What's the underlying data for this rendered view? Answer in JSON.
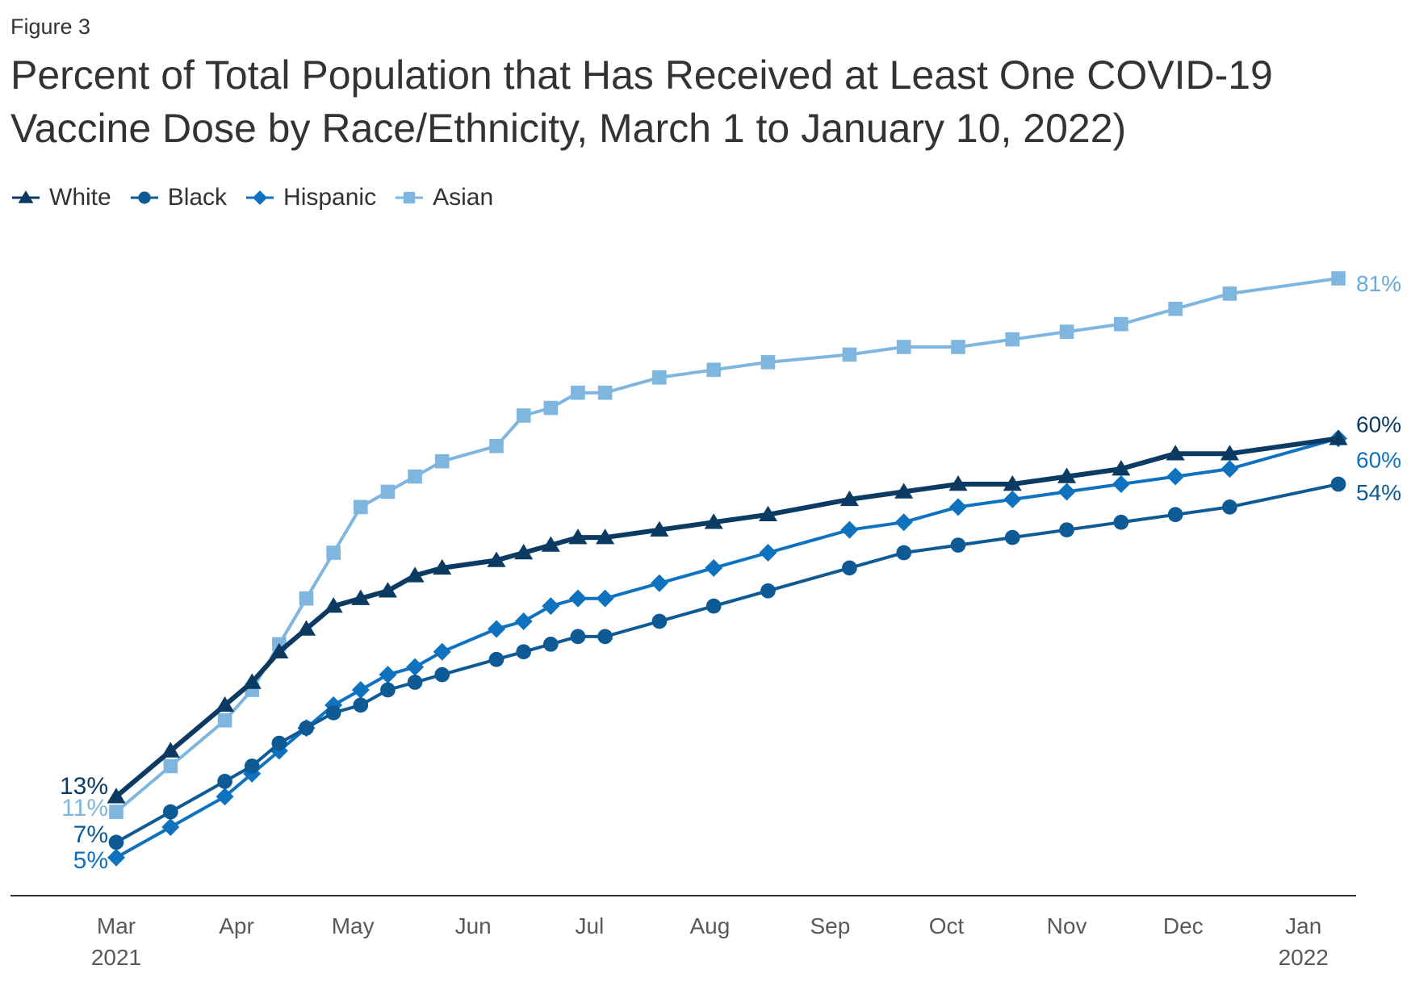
{
  "figure_label": "Figure 3",
  "chart_data": {
    "type": "line",
    "title": "Percent of Total Population that Has Received at Least One COVID-19 Vaccine Dose by Race/Ethnicity, March 1 to January 10, 2022)",
    "ylim": [
      0,
      90
    ],
    "grid": false,
    "legend_position": "top-left",
    "x_ticks": [
      {
        "date": "2021-03-01",
        "label": "Mar",
        "sublabel": "2021"
      },
      {
        "date": "2021-04-01",
        "label": "Apr",
        "sublabel": ""
      },
      {
        "date": "2021-05-01",
        "label": "May",
        "sublabel": ""
      },
      {
        "date": "2021-06-01",
        "label": "Jun",
        "sublabel": ""
      },
      {
        "date": "2021-07-01",
        "label": "Jul",
        "sublabel": ""
      },
      {
        "date": "2021-08-01",
        "label": "Aug",
        "sublabel": ""
      },
      {
        "date": "2021-09-01",
        "label": "Sep",
        "sublabel": ""
      },
      {
        "date": "2021-10-01",
        "label": "Oct",
        "sublabel": ""
      },
      {
        "date": "2021-11-01",
        "label": "Nov",
        "sublabel": ""
      },
      {
        "date": "2021-12-01",
        "label": "Dec",
        "sublabel": ""
      },
      {
        "date": "2022-01-01",
        "label": "Jan",
        "sublabel": "2022"
      }
    ],
    "x": [
      "2021-03-01",
      "2021-03-15",
      "2021-03-29",
      "2021-04-05",
      "2021-04-12",
      "2021-04-19",
      "2021-04-26",
      "2021-05-03",
      "2021-05-10",
      "2021-05-17",
      "2021-05-24",
      "2021-06-07",
      "2021-06-14",
      "2021-06-21",
      "2021-06-28",
      "2021-07-05",
      "2021-07-19",
      "2021-08-02",
      "2021-08-16",
      "2021-09-06",
      "2021-09-20",
      "2021-10-04",
      "2021-10-18",
      "2021-11-01",
      "2021-11-15",
      "2021-11-29",
      "2021-12-13",
      "2022-01-10"
    ],
    "series": [
      {
        "name": "White",
        "color": "#0b3a63",
        "marker": "triangle",
        "end_label": "60%",
        "start_label": "13%",
        "values": [
          13,
          19,
          25,
          28,
          32,
          35,
          38,
          39,
          40,
          42,
          43,
          44,
          45,
          46,
          47,
          47,
          48,
          49,
          50,
          52,
          53,
          54,
          54,
          55,
          56,
          58,
          58,
          60
        ]
      },
      {
        "name": "Black",
        "color": "#0e5a95",
        "marker": "circle",
        "end_label": "54%",
        "start_label": "7%",
        "values": [
          7,
          11,
          15,
          17,
          20,
          22,
          24,
          25,
          27,
          28,
          29,
          31,
          32,
          33,
          34,
          34,
          36,
          38,
          40,
          43,
          45,
          46,
          47,
          48,
          49,
          50,
          51,
          54
        ]
      },
      {
        "name": "Hispanic",
        "color": "#0e72bf",
        "marker": "diamond",
        "end_label": "60%",
        "start_label": "5%",
        "values": [
          5,
          9,
          13,
          16,
          19,
          22,
          25,
          27,
          29,
          30,
          32,
          35,
          36,
          38,
          39,
          39,
          41,
          43,
          45,
          48,
          49,
          51,
          52,
          53,
          54,
          55,
          56,
          60
        ]
      },
      {
        "name": "Asian",
        "color": "#7fb6e0",
        "marker": "square",
        "end_label": "81%",
        "start_label": "11%",
        "values": [
          11,
          17,
          23,
          27,
          33,
          39,
          45,
          51,
          53,
          55,
          57,
          59,
          63,
          64,
          66,
          66,
          68,
          69,
          70,
          71,
          72,
          72,
          73,
          74,
          75,
          77,
          79,
          81
        ]
      }
    ]
  }
}
